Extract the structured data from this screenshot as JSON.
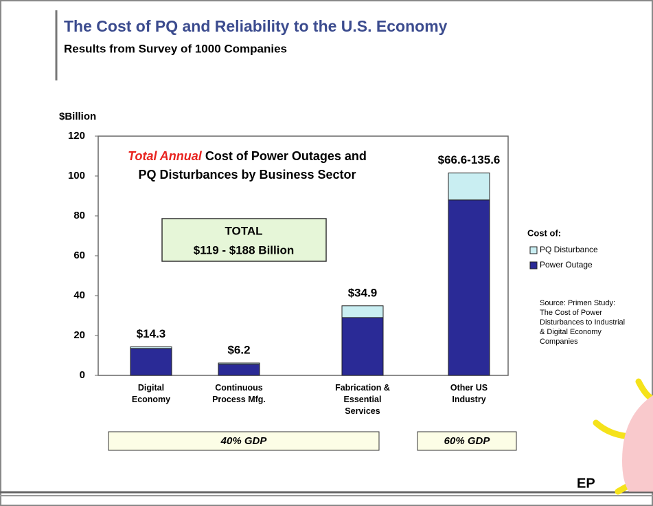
{
  "chart_data": {
    "type": "stacked_bar",
    "title": "The Cost of PQ and Reliability to the U.S. Economy",
    "subtitle": "Results from Survey of 1000 Companies",
    "y_label": "$Billion",
    "annotation_emphasis": "Total Annual",
    "annotation": "Cost of Power Outages and PQ Disturbances by Business Sector",
    "total_box": [
      "TOTAL",
      "$119 - $188 Billion"
    ],
    "categories": [
      "Digital Economy",
      "Continuous Process Mfg.",
      "Fabrication & Essential Services",
      "Other US Industry"
    ],
    "bar_labels": [
      "$14.3",
      "$6.2",
      "$34.9",
      "$66.6-135.6"
    ],
    "series": [
      {
        "name": "Power Outage",
        "color": "#2a2a96",
        "values": [
          13.5,
          5.6,
          29,
          88
        ]
      },
      {
        "name": "PQ Disturbance",
        "color": "#c9eef2",
        "values": [
          0.8,
          0.6,
          5.9,
          13.5
        ]
      }
    ],
    "legend_title": "Cost of:",
    "legend": "right",
    "source": "Source: Primen Study: The Cost of Power Disturbances to Industrial & Digital Economy Companies",
    "gdp_groups": [
      "40% GDP",
      "60% GDP"
    ],
    "ylim": [
      0,
      120
    ],
    "yticks": [
      0,
      20,
      40,
      60,
      80,
      100,
      120
    ],
    "grid": false
  }
}
